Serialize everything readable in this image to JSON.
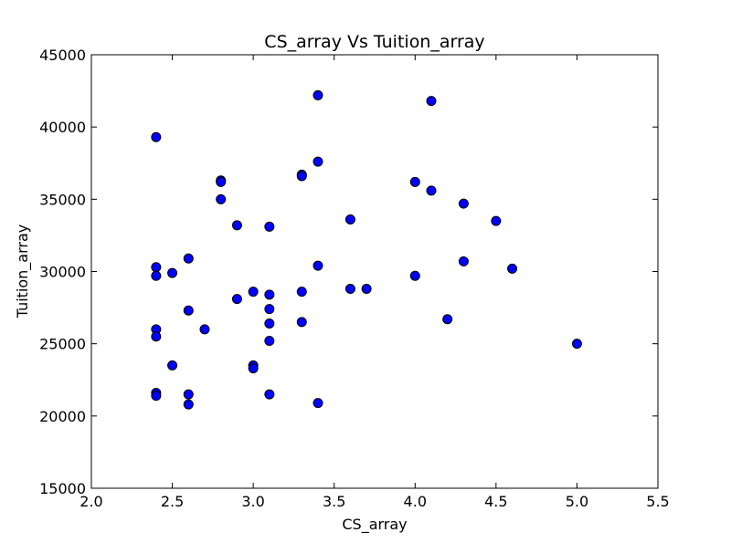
{
  "chart_data": {
    "type": "scatter",
    "title": "CS_array Vs Tuition_array",
    "xlabel": "CS_array",
    "ylabel": "Tuition_array",
    "xlim": [
      2.0,
      5.5
    ],
    "ylim": [
      15000,
      45000
    ],
    "xticks": [
      "2.0",
      "2.5",
      "3.0",
      "3.5",
      "4.0",
      "4.5",
      "5.0",
      "5.5"
    ],
    "yticks": [
      "15000",
      "20000",
      "25000",
      "30000",
      "35000",
      "40000",
      "45000"
    ],
    "grid": false,
    "marker_color": "#0000ff",
    "points": [
      {
        "x": 2.4,
        "y": 39300
      },
      {
        "x": 2.4,
        "y": 30300
      },
      {
        "x": 2.4,
        "y": 29700
      },
      {
        "x": 2.4,
        "y": 26000
      },
      {
        "x": 2.4,
        "y": 25500
      },
      {
        "x": 2.4,
        "y": 21600
      },
      {
        "x": 2.4,
        "y": 21400
      },
      {
        "x": 2.5,
        "y": 29900
      },
      {
        "x": 2.5,
        "y": 23500
      },
      {
        "x": 2.6,
        "y": 30900
      },
      {
        "x": 2.6,
        "y": 27300
      },
      {
        "x": 2.6,
        "y": 21500
      },
      {
        "x": 2.6,
        "y": 20800
      },
      {
        "x": 2.7,
        "y": 26000
      },
      {
        "x": 2.8,
        "y": 36300
      },
      {
        "x": 2.8,
        "y": 36200
      },
      {
        "x": 2.8,
        "y": 35000
      },
      {
        "x": 2.9,
        "y": 33200
      },
      {
        "x": 2.9,
        "y": 28100
      },
      {
        "x": 3.0,
        "y": 28600
      },
      {
        "x": 3.0,
        "y": 23500
      },
      {
        "x": 3.0,
        "y": 23300
      },
      {
        "x": 3.1,
        "y": 33100
      },
      {
        "x": 3.1,
        "y": 28400
      },
      {
        "x": 3.1,
        "y": 27400
      },
      {
        "x": 3.1,
        "y": 26400
      },
      {
        "x": 3.1,
        "y": 25200
      },
      {
        "x": 3.1,
        "y": 21500
      },
      {
        "x": 3.3,
        "y": 36700
      },
      {
        "x": 3.3,
        "y": 36600
      },
      {
        "x": 3.3,
        "y": 28600
      },
      {
        "x": 3.3,
        "y": 26500
      },
      {
        "x": 3.4,
        "y": 42200
      },
      {
        "x": 3.4,
        "y": 37600
      },
      {
        "x": 3.4,
        "y": 30400
      },
      {
        "x": 3.4,
        "y": 20900
      },
      {
        "x": 3.6,
        "y": 33600
      },
      {
        "x": 3.6,
        "y": 28800
      },
      {
        "x": 3.7,
        "y": 28800
      },
      {
        "x": 4.0,
        "y": 36200
      },
      {
        "x": 4.0,
        "y": 29700
      },
      {
        "x": 4.1,
        "y": 41800
      },
      {
        "x": 4.1,
        "y": 35600
      },
      {
        "x": 4.2,
        "y": 26700
      },
      {
        "x": 4.3,
        "y": 34700
      },
      {
        "x": 4.3,
        "y": 30700
      },
      {
        "x": 4.5,
        "y": 33500
      },
      {
        "x": 4.6,
        "y": 30200
      },
      {
        "x": 5.0,
        "y": 25000
      }
    ]
  }
}
